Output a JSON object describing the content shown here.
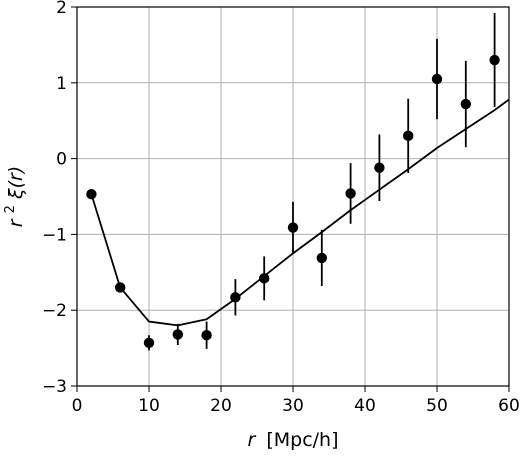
{
  "chart_data": {
    "type": "scatter",
    "xlabel_symbol": "r",
    "xlabel_unit": "[Mpc/h]",
    "ylabel_base": "r",
    "ylabel_sup": "2",
    "ylabel_rest": "ξ(r)",
    "xlim": [
      0,
      60
    ],
    "ylim": [
      -3,
      2
    ],
    "xticks": [
      0,
      10,
      20,
      30,
      40,
      50,
      60
    ],
    "xtick_labels": [
      "0",
      "10",
      "20",
      "30",
      "40",
      "50",
      "60"
    ],
    "yticks": [
      -3,
      -2,
      -1,
      0,
      1,
      2
    ],
    "ytick_labels": [
      "−3",
      "−2",
      "−1",
      "0",
      "1",
      "2"
    ],
    "grid": true,
    "series": [
      {
        "kind": "errorbar",
        "color": "#000000",
        "x": [
          2,
          6,
          10,
          14,
          18,
          22,
          26,
          30,
          34,
          38,
          42,
          46,
          50,
          54,
          58
        ],
        "y": [
          -0.47,
          -1.7,
          -2.43,
          -2.32,
          -2.33,
          -1.83,
          -1.58,
          -0.91,
          -1.31,
          -0.46,
          -0.12,
          0.3,
          1.05,
          0.72,
          1.3
        ],
        "err": [
          0.0,
          0.0,
          0.1,
          0.14,
          0.18,
          0.24,
          0.29,
          0.34,
          0.37,
          0.4,
          0.44,
          0.49,
          0.53,
          0.57,
          0.62
        ]
      },
      {
        "kind": "line",
        "color": "#000000",
        "x": [
          2,
          6,
          10,
          14,
          18,
          22,
          26,
          30,
          34,
          38,
          42,
          46,
          50,
          54,
          58,
          60
        ],
        "y": [
          -0.47,
          -1.7,
          -2.15,
          -2.2,
          -2.12,
          -1.85,
          -1.55,
          -1.25,
          -0.97,
          -0.68,
          -0.41,
          -0.14,
          0.14,
          0.39,
          0.64,
          0.78
        ]
      }
    ]
  }
}
